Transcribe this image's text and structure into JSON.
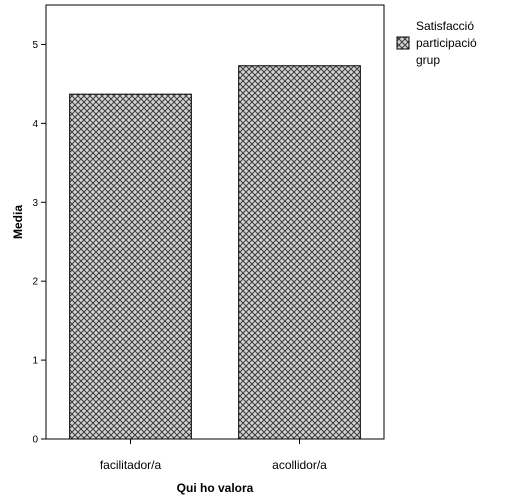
{
  "chart_data": {
    "type": "bar",
    "categories": [
      "facilitador/a",
      "acollidor/a"
    ],
    "series": [
      {
        "name": "Satisfacció participació grup",
        "values": [
          4.37,
          4.73
        ]
      }
    ],
    "xlabel": "Qui ho valora",
    "ylabel": "Media",
    "ylim": [
      0,
      5.5
    ],
    "yticks": [
      0,
      1,
      2,
      3,
      4,
      5
    ],
    "grid": false,
    "legend_position": "top-right",
    "legend_lines": [
      "Satisfacció",
      "participació",
      "grup"
    ],
    "colors": {
      "bar_fill": "#d4d4d4",
      "bar_pattern": "#3a3a3a",
      "axis": "#000000"
    }
  }
}
